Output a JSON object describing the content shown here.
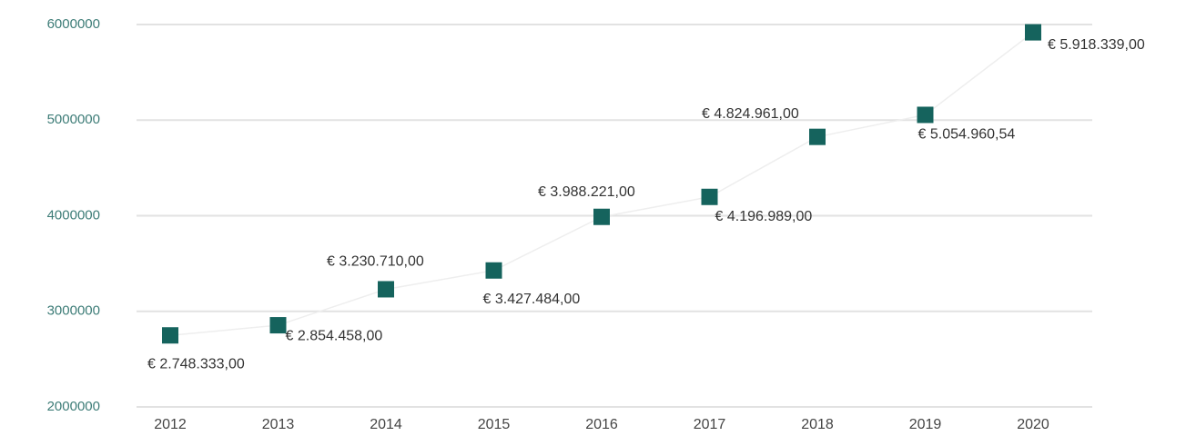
{
  "chart_data": {
    "type": "line",
    "categories": [
      "2012",
      "2013",
      "2014",
      "2015",
      "2016",
      "2017",
      "2018",
      "2019",
      "2020"
    ],
    "series": [
      {
        "color": "#15635d",
        "values": [
          2748333,
          2854458,
          3230710,
          3427484,
          3988221,
          4196989,
          4824961,
          5054960.54,
          5918339
        ],
        "value_labels": [
          "€ 2.748.333,00",
          "€ 2.854.458,00",
          "€ 3.230.710,00",
          "€ 3.427.484,00",
          "€ 3.988.221,00",
          "€ 4.196.989,00",
          "€ 4.824.961,00",
          "€ 5.054.960,54",
          "€ 5.918.339,00"
        ]
      }
    ],
    "ylim": [
      2000000,
      6000000
    ],
    "yticks": [
      2000000,
      3000000,
      4000000,
      5000000,
      6000000
    ],
    "grid": true
  }
}
